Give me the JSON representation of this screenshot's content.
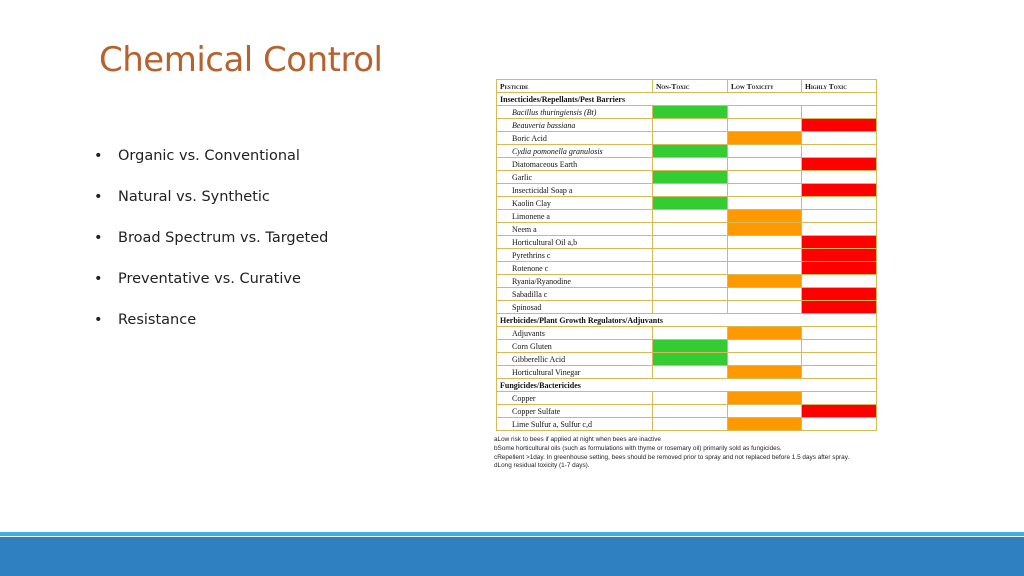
{
  "title": "Chemical Control",
  "bullets": [
    "Organic vs. Conventional",
    "Natural vs. Synthetic",
    "Broad Spectrum vs. Targeted",
    "Preventative vs. Curative",
    "Resistance"
  ],
  "bullet_char": "•",
  "table": {
    "headers": [
      "Pesticide",
      "Non-Toxic",
      "Low Toxicity",
      "Highly Toxic"
    ],
    "sections": [
      {
        "title": "Insecticides/Repellants/Pest Barriers",
        "rows": [
          {
            "name": "Bacillus thuringiensis (Bt)",
            "level": "green"
          },
          {
            "name": "Beauveria bassiana",
            "level": "red"
          },
          {
            "name": "Boric Acid",
            "level": "orange"
          },
          {
            "name": "Cydia pomonella granulosis",
            "level": "green"
          },
          {
            "name": "Diatomaceous Earth",
            "level": "red"
          },
          {
            "name": "Garlic",
            "level": "green"
          },
          {
            "name": "Insecticidal Soap a",
            "level": "red"
          },
          {
            "name": "Kaolin Clay",
            "level": "green"
          },
          {
            "name": "Limonene a",
            "level": "orange"
          },
          {
            "name": "Neem a",
            "level": "orange"
          },
          {
            "name": "Horticultural Oil a,b",
            "level": "red"
          },
          {
            "name": "Pyrethrins c",
            "level": "red"
          },
          {
            "name": "Rotenone c",
            "level": "red"
          },
          {
            "name": "Ryania/Ryanodine",
            "level": "orange"
          },
          {
            "name": "Sabadilla c",
            "level": "red"
          },
          {
            "name": "Spinosad",
            "level": "red"
          }
        ]
      },
      {
        "title": "Herbicides/Plant Growth Regulators/Adjuvants",
        "rows": [
          {
            "name": "Adjuvants",
            "level": "orange"
          },
          {
            "name": "Corn Gluten",
            "level": "green"
          },
          {
            "name": "Gibberellic Acid",
            "level": "green"
          },
          {
            "name": "Horticultural Vinegar",
            "level": "orange"
          }
        ]
      },
      {
        "title": "Fungicides/Bactericides",
        "rows": [
          {
            "name": "Copper",
            "level": "orange"
          },
          {
            "name": "Copper Sulfate",
            "level": "red"
          },
          {
            "name": "Lime Sulfur a, Sulfur c,d",
            "level": "orange"
          }
        ]
      }
    ]
  },
  "footnotes": [
    "aLow risk to bees if applied at night when bees are inactive",
    "bSome horticultural oils (such as formulations with thyme or rosemary oil) primarily sold as fungicides.",
    "cRepellent >1day. In greenhouse setting, bees should be removed prior to spray and not replaced before 1.5 days after spray.",
    "dLong residual toxicity (1-7 days)."
  ],
  "colors": {
    "title": "#b5622d",
    "non_toxic": "#33cc33",
    "low_toxicity": "#ff9900",
    "highly_toxic": "#ff0000",
    "footer_bar": "#2e80c0",
    "footer_line": "#3cb0e4"
  }
}
